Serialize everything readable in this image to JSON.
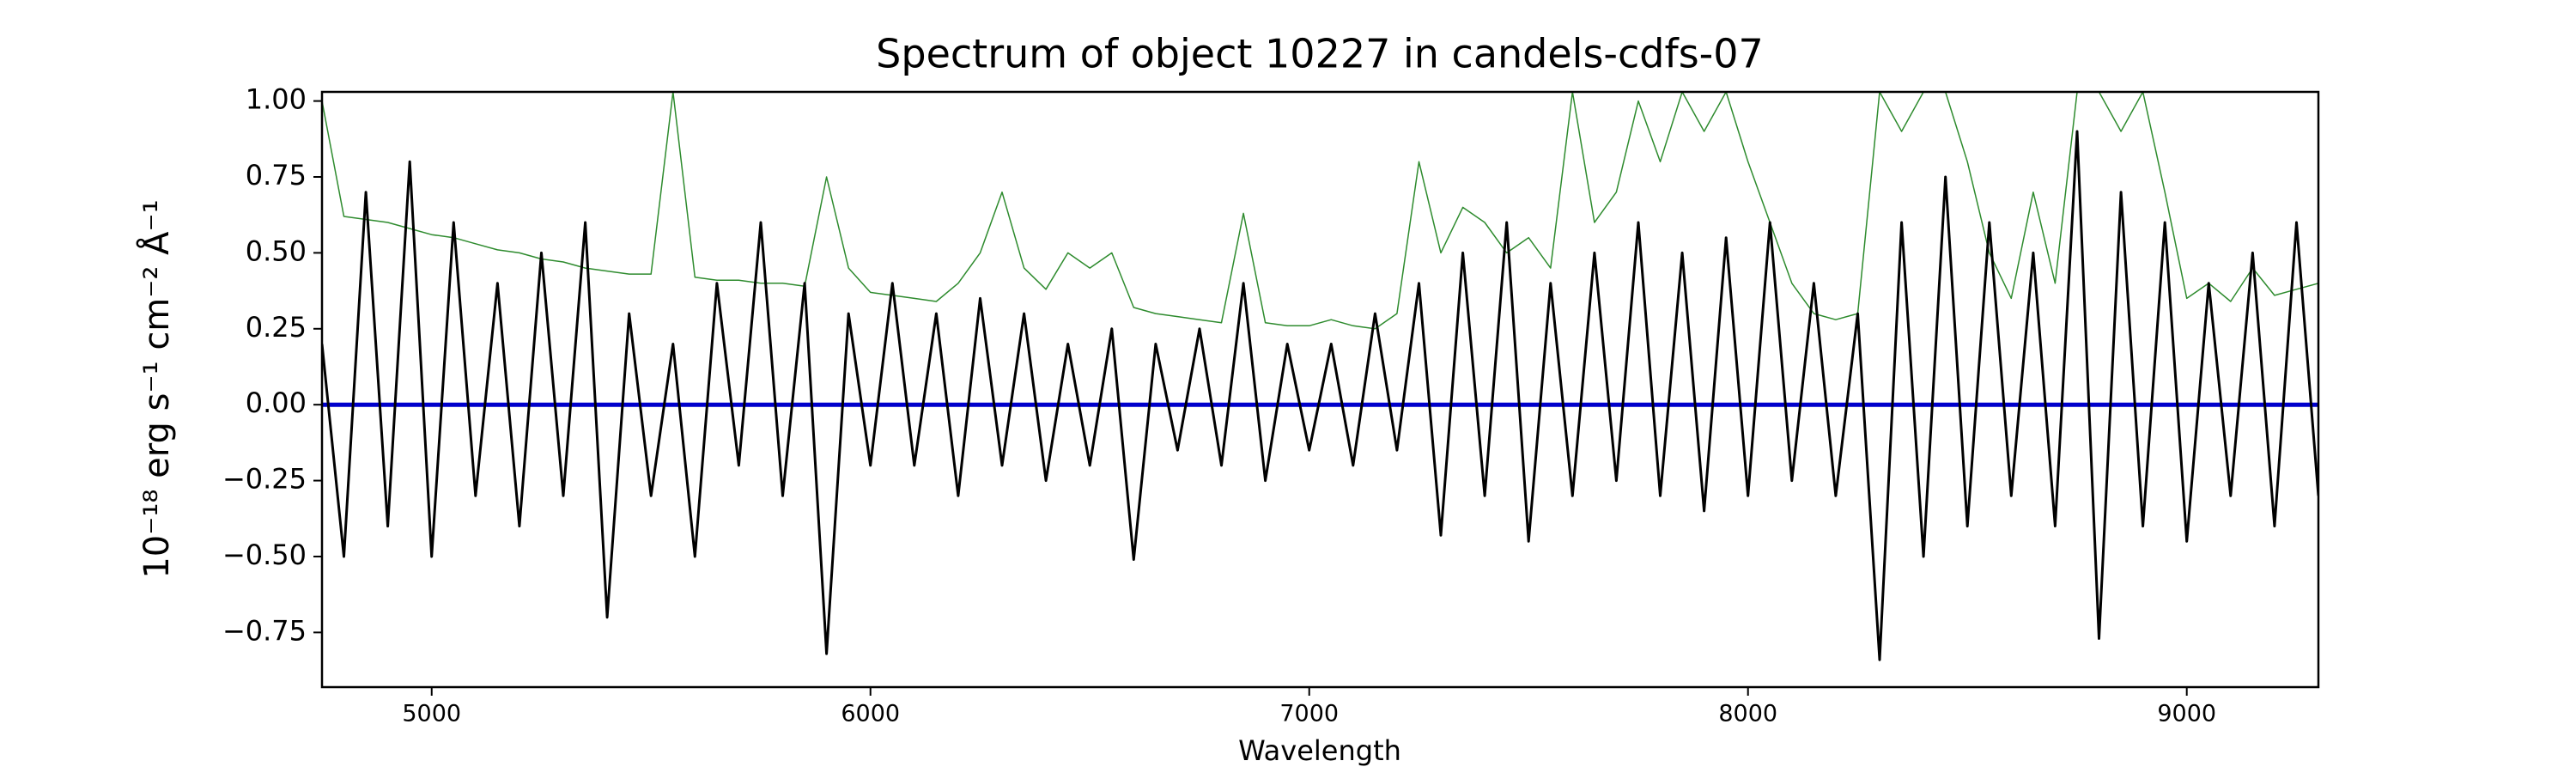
{
  "chart_data": {
    "type": "line",
    "title": "Spectrum of object 10227 in candels-cdfs-07",
    "xlabel": "Wavelength",
    "ylabel": "10⁻¹⁸ erg s⁻¹ cm⁻² Å⁻¹",
    "xlim": [
      4750,
      9300
    ],
    "ylim": [
      -0.93,
      1.03
    ],
    "xticks": [
      5000,
      6000,
      7000,
      8000,
      9000
    ],
    "yticks": [
      {
        "value": 1.0,
        "label": "1.00"
      },
      {
        "value": 0.75,
        "label": "0.75"
      },
      {
        "value": 0.5,
        "label": "0.50"
      },
      {
        "value": 0.25,
        "label": "0.25"
      },
      {
        "value": 0.0,
        "label": "0.00"
      },
      {
        "value": -0.25,
        "label": "−0.25"
      },
      {
        "value": -0.5,
        "label": "−0.50"
      },
      {
        "value": -0.75,
        "label": "−0.75"
      }
    ],
    "x": [
      4750,
      4800,
      4850,
      4900,
      4950,
      5000,
      5050,
      5100,
      5150,
      5200,
      5250,
      5300,
      5350,
      5400,
      5450,
      5500,
      5550,
      5600,
      5650,
      5700,
      5750,
      5800,
      5850,
      5900,
      5950,
      6000,
      6050,
      6100,
      6150,
      6200,
      6250,
      6300,
      6350,
      6400,
      6450,
      6500,
      6550,
      6600,
      6650,
      6700,
      6750,
      6800,
      6850,
      6900,
      6950,
      7000,
      7050,
      7100,
      7150,
      7200,
      7250,
      7300,
      7350,
      7400,
      7450,
      7500,
      7550,
      7600,
      7650,
      7700,
      7750,
      7800,
      7850,
      7900,
      7950,
      8000,
      8050,
      8100,
      8150,
      8200,
      8250,
      8300,
      8350,
      8400,
      8450,
      8500,
      8550,
      8600,
      8650,
      8700,
      8750,
      8800,
      8850,
      8900,
      8950,
      9000,
      9050,
      9100,
      9150,
      9200,
      9250,
      9300
    ],
    "series": [
      {
        "color": "#2e8b2e",
        "width": 1.5,
        "values": [
          1.0,
          0.62,
          0.61,
          0.6,
          0.58,
          0.56,
          0.55,
          0.53,
          0.51,
          0.5,
          0.48,
          0.47,
          0.45,
          0.44,
          0.43,
          0.43,
          1.03,
          0.42,
          0.41,
          0.41,
          0.4,
          0.4,
          0.39,
          0.75,
          0.45,
          0.37,
          0.36,
          0.35,
          0.34,
          0.4,
          0.5,
          0.7,
          0.45,
          0.38,
          0.5,
          0.45,
          0.5,
          0.32,
          0.3,
          0.29,
          0.28,
          0.27,
          0.63,
          0.27,
          0.26,
          0.26,
          0.28,
          0.26,
          0.25,
          0.3,
          0.8,
          0.5,
          0.65,
          0.6,
          0.5,
          0.55,
          0.45,
          1.03,
          0.6,
          0.7,
          1.0,
          0.8,
          1.03,
          0.9,
          1.03,
          0.8,
          0.6,
          0.4,
          0.3,
          0.28,
          0.3,
          1.03,
          0.9,
          1.03,
          1.03,
          0.8,
          0.5,
          0.35,
          0.7,
          0.4,
          1.03,
          1.03,
          0.9,
          1.03,
          0.7,
          0.35,
          0.4,
          0.34,
          0.45,
          0.36,
          0.38,
          0.4
        ]
      },
      {
        "color": "#0000cc",
        "width": 5,
        "values": [
          0,
          0,
          0,
          0,
          0,
          0,
          0,
          0,
          0,
          0,
          0,
          0,
          0,
          0,
          0,
          0,
          0,
          0,
          0,
          0,
          0,
          0,
          0,
          0,
          0,
          0,
          0,
          0,
          0,
          0,
          0,
          0,
          0,
          0,
          0,
          0,
          0,
          0,
          0,
          0,
          0,
          0,
          0,
          0,
          0,
          0,
          0,
          0,
          0,
          0,
          0,
          0,
          0,
          0,
          0,
          0,
          0,
          0,
          0,
          0,
          0,
          0,
          0,
          0,
          0,
          0,
          0,
          0,
          0,
          0,
          0,
          0,
          0,
          0,
          0,
          0,
          0,
          0,
          0,
          0,
          0,
          0,
          0,
          0,
          0,
          0,
          0,
          0,
          0,
          0,
          0,
          0
        ]
      },
      {
        "color": "#000000",
        "width": 3,
        "values": [
          0.2,
          -0.5,
          0.7,
          -0.4,
          0.8,
          -0.5,
          0.6,
          -0.3,
          0.4,
          -0.4,
          0.5,
          -0.3,
          0.6,
          -0.7,
          0.3,
          -0.3,
          0.2,
          -0.5,
          0.4,
          -0.2,
          0.6,
          -0.3,
          0.4,
          -0.82,
          0.3,
          -0.2,
          0.4,
          -0.2,
          0.3,
          -0.3,
          0.35,
          -0.2,
          0.3,
          -0.25,
          0.2,
          -0.2,
          0.25,
          -0.51,
          0.2,
          -0.15,
          0.25,
          -0.2,
          0.4,
          -0.25,
          0.2,
          -0.15,
          0.2,
          -0.2,
          0.3,
          -0.15,
          0.4,
          -0.43,
          0.5,
          -0.3,
          0.6,
          -0.45,
          0.4,
          -0.3,
          0.5,
          -0.25,
          0.6,
          -0.3,
          0.5,
          -0.35,
          0.55,
          -0.3,
          0.6,
          -0.25,
          0.4,
          -0.3,
          0.3,
          -0.84,
          0.6,
          -0.5,
          0.75,
          -0.4,
          0.6,
          -0.3,
          0.5,
          -0.4,
          0.9,
          -0.77,
          0.7,
          -0.4,
          0.6,
          -0.45,
          0.4,
          -0.3,
          0.5,
          -0.4,
          0.6,
          -0.3
        ]
      }
    ]
  }
}
